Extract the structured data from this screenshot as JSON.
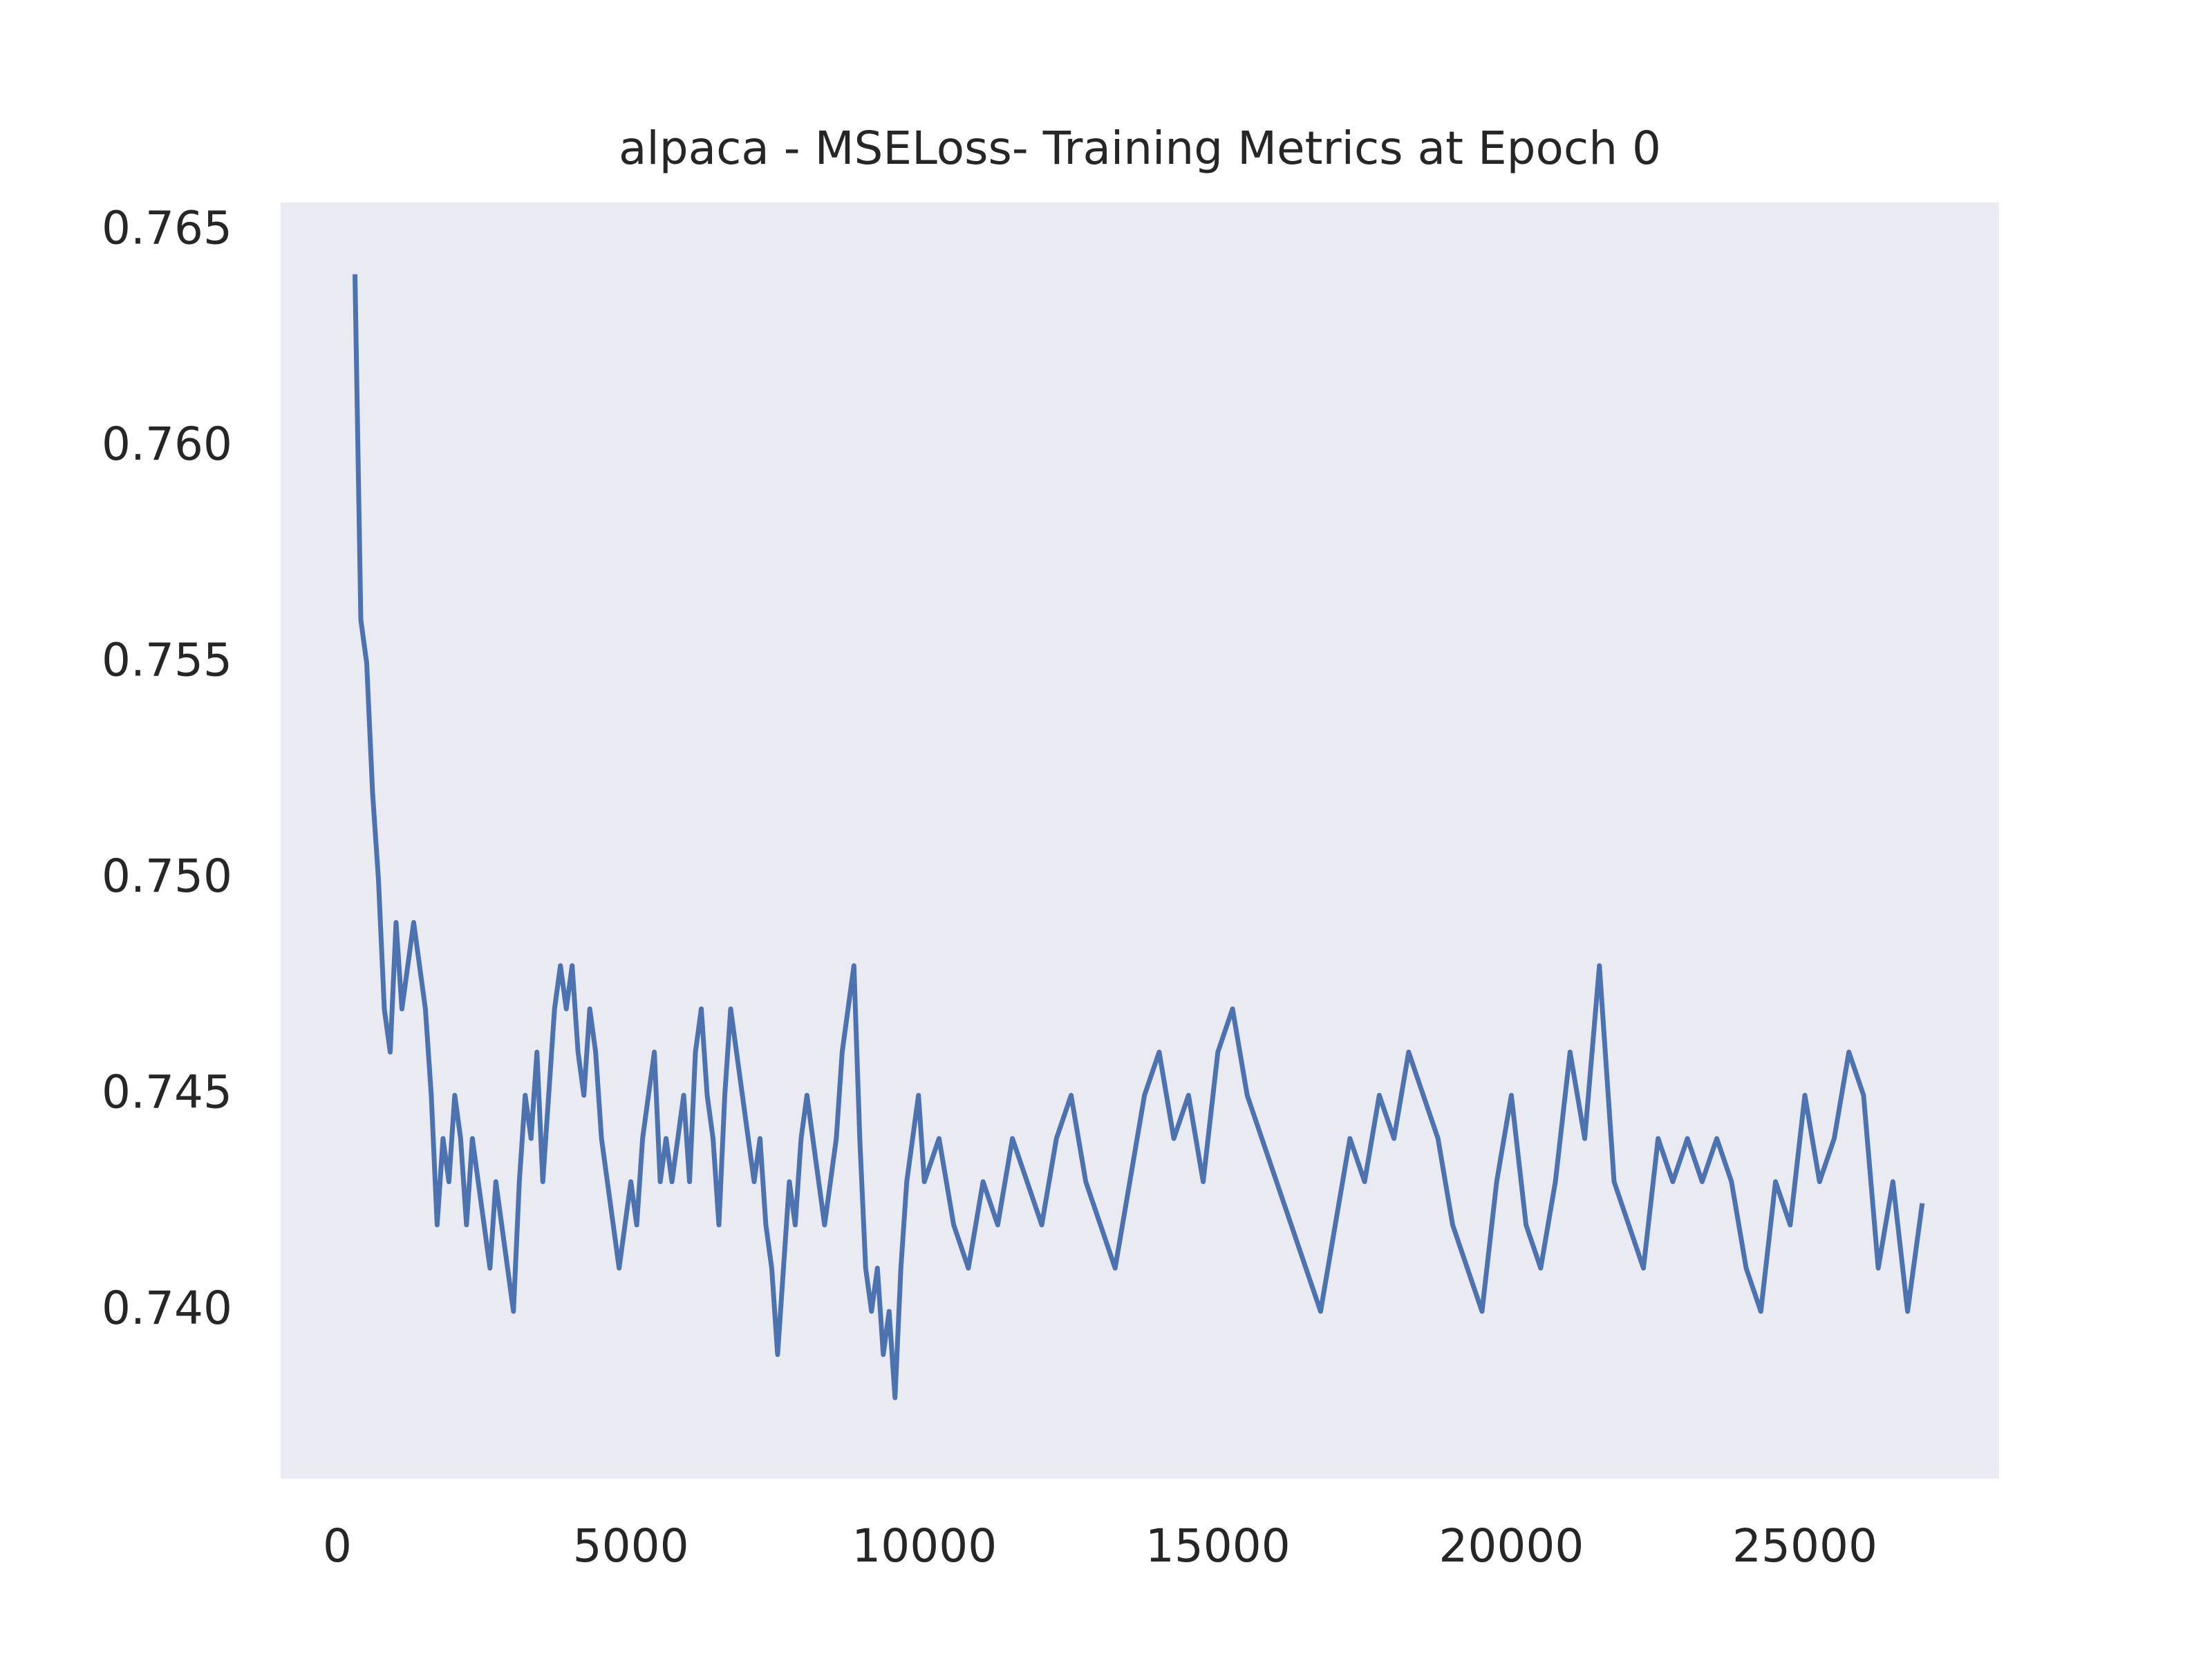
{
  "chart_data": {
    "type": "line",
    "title": "alpaca - MSELoss- Training Metrics at Epoch 0",
    "x": [
      300,
      400,
      500,
      600,
      700,
      800,
      900,
      1000,
      1100,
      1200,
      1300,
      1400,
      1500,
      1600,
      1700,
      1800,
      1900,
      2000,
      2100,
      2200,
      2300,
      2400,
      2500,
      2600,
      2700,
      2800,
      2900,
      3000,
      3100,
      3200,
      3300,
      3400,
      3500,
      3600,
      3700,
      3800,
      3900,
      4000,
      4100,
      4200,
      4300,
      4400,
      4500,
      4600,
      4700,
      4800,
      4900,
      5000,
      5100,
      5200,
      5300,
      5400,
      5500,
      5600,
      5700,
      5800,
      5900,
      6000,
      6100,
      6200,
      6300,
      6400,
      6500,
      6600,
      6700,
      6800,
      6900,
      7000,
      7100,
      7200,
      7300,
      7400,
      7500,
      7600,
      7700,
      7800,
      7900,
      8000,
      8100,
      8200,
      8300,
      8400,
      8500,
      8600,
      8700,
      8800,
      8900,
      9000,
      9100,
      9200,
      9300,
      9400,
      9500,
      9600,
      9700,
      9800,
      9900,
      10000,
      10250,
      10500,
      10750,
      11000,
      11250,
      11500,
      11750,
      12000,
      12250,
      12500,
      12750,
      13000,
      13250,
      13500,
      13750,
      14000,
      14250,
      14500,
      14750,
      15000,
      15250,
      15500,
      15750,
      16000,
      16250,
      16500,
      16750,
      17000,
      17250,
      17500,
      17750,
      18000,
      18250,
      18500,
      18750,
      19000,
      19250,
      19500,
      19750,
      20000,
      20250,
      20500,
      20750,
      21000,
      21250,
      21500,
      21750,
      22000,
      22250,
      22500,
      22750,
      23000,
      23250,
      23500,
      23750,
      24000,
      24250,
      24500,
      24750,
      25000,
      25250,
      25500,
      25750,
      26000,
      26250,
      26500,
      26750,
      27000
    ],
    "series": [
      {
        "color": "#4c72b0",
        "values": [
          0.764,
          0.756,
          0.755,
          0.752,
          0.75,
          0.747,
          0.746,
          0.749,
          0.747,
          0.748,
          0.749,
          0.748,
          0.747,
          0.745,
          0.742,
          0.744,
          0.743,
          0.745,
          0.744,
          0.742,
          0.744,
          0.743,
          0.742,
          0.741,
          0.743,
          0.742,
          0.741,
          0.74,
          0.743,
          0.745,
          0.744,
          0.746,
          0.743,
          0.745,
          0.747,
          0.748,
          0.747,
          0.748,
          0.746,
          0.745,
          0.747,
          0.746,
          0.744,
          0.743,
          0.742,
          0.741,
          0.742,
          0.743,
          0.742,
          0.744,
          0.745,
          0.746,
          0.743,
          0.744,
          0.743,
          0.744,
          0.745,
          0.743,
          0.746,
          0.747,
          0.745,
          0.744,
          0.742,
          0.745,
          0.747,
          0.746,
          0.745,
          0.744,
          0.743,
          0.744,
          0.742,
          0.741,
          0.739,
          0.741,
          0.743,
          0.742,
          0.744,
          0.745,
          0.744,
          0.743,
          0.742,
          0.743,
          0.744,
          0.746,
          0.747,
          0.748,
          0.744,
          0.741,
          0.74,
          0.741,
          0.739,
          0.74,
          0.738,
          0.741,
          0.743,
          0.744,
          0.745,
          0.743,
          0.744,
          0.742,
          0.741,
          0.743,
          0.742,
          0.744,
          0.743,
          0.742,
          0.744,
          0.745,
          0.743,
          0.742,
          0.741,
          0.743,
          0.745,
          0.746,
          0.744,
          0.745,
          0.743,
          0.746,
          0.747,
          0.745,
          0.744,
          0.743,
          0.742,
          0.741,
          0.74,
          0.742,
          0.744,
          0.743,
          0.745,
          0.744,
          0.746,
          0.745,
          0.744,
          0.742,
          0.741,
          0.74,
          0.743,
          0.745,
          0.742,
          0.741,
          0.743,
          0.746,
          0.744,
          0.748,
          0.743,
          0.742,
          0.741,
          0.744,
          0.743,
          0.744,
          0.743,
          0.744,
          0.743,
          0.741,
          0.74,
          0.743,
          0.742,
          0.745,
          0.743,
          0.744,
          0.746,
          0.745,
          0.741,
          0.743,
          0.74,
          0.7425
        ]
      }
    ],
    "xlim": [
      -966,
      28309
    ],
    "ylim": [
      0.73613,
      0.76566
    ],
    "xticks": [
      0,
      5000,
      10000,
      15000,
      20000,
      25000
    ],
    "yticks": [
      {
        "value": 0.74,
        "label": "0.740"
      },
      0.745,
      {
        "value": 0.75,
        "label": "0.750"
      },
      0.755,
      {
        "value": 0.76,
        "label": "0.760"
      },
      0.765
    ],
    "grid": false
  }
}
